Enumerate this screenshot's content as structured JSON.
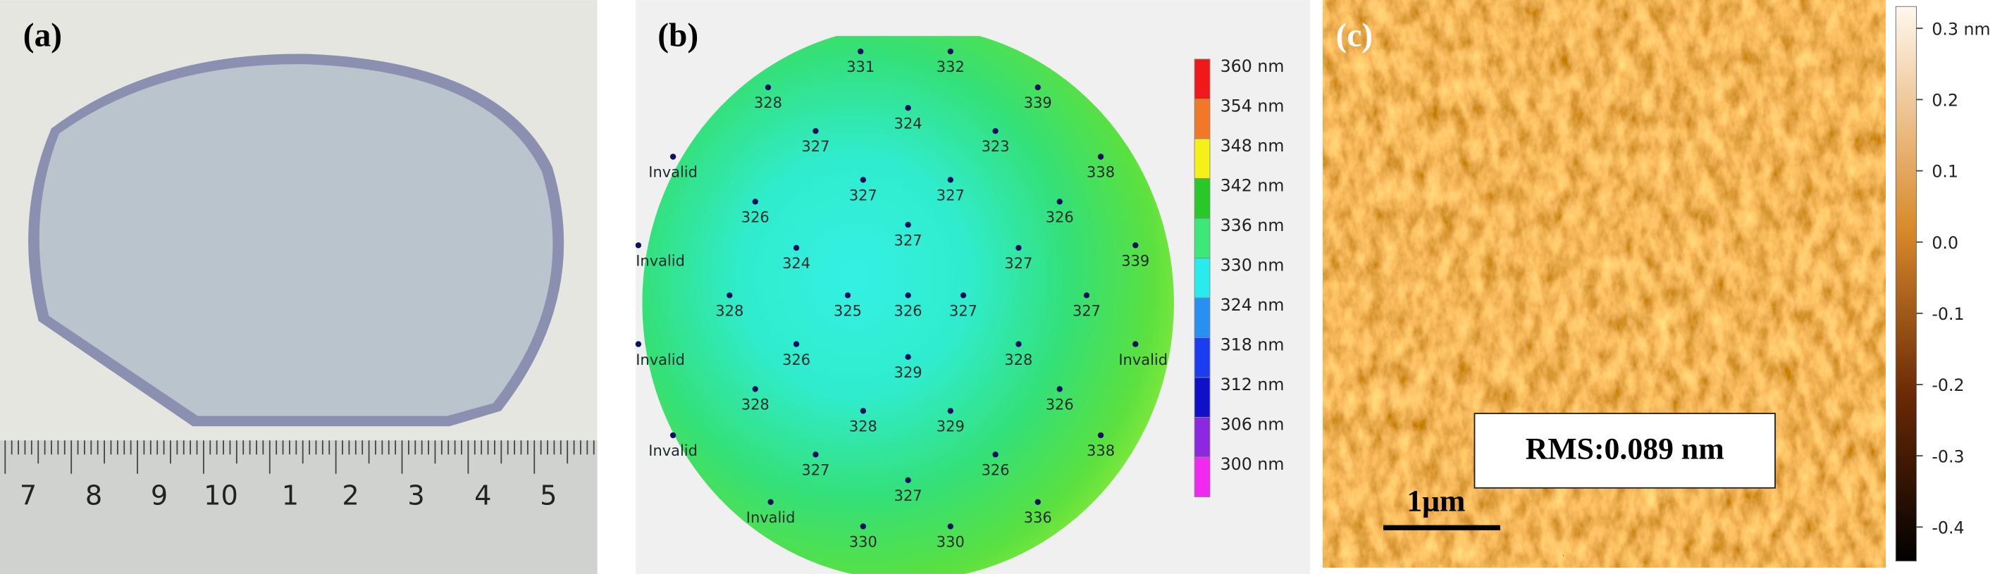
{
  "panels": [
    {
      "label": "(a)",
      "ruler_labels": [
        "7",
        "8",
        "9",
        "10",
        "1",
        "2",
        "3",
        "4",
        "5"
      ]
    },
    {
      "label": "(b)",
      "points": [
        331,
        332,
        328,
        339,
        324,
        327,
        323,
        "Invalid",
        338,
        327,
        327,
        326,
        326,
        327,
        "Invalid",
        324,
        327,
        339,
        328,
        325,
        326,
        327,
        327,
        "Invalid",
        326,
        329,
        328,
        "Invalid",
        328,
        326,
        328,
        329,
        "Invalid",
        338,
        327,
        326,
        327,
        "Invalid",
        336,
        330,
        330
      ],
      "colorbar": [
        {
          "value": 360,
          "label": "360 nm",
          "color": "#f01818"
        },
        {
          "value": 354,
          "label": "354 nm",
          "color": "#f07828"
        },
        {
          "value": 348,
          "label": "348 nm",
          "color": "#f4f018"
        },
        {
          "value": 342,
          "label": "342 nm",
          "color": "#28c828"
        },
        {
          "value": 336,
          "label": "336 nm",
          "color": "#3ce878"
        },
        {
          "value": 330,
          "label": "330 nm",
          "color": "#28ecec"
        },
        {
          "value": 324,
          "label": "324 nm",
          "color": "#2890f0"
        },
        {
          "value": 318,
          "label": "318 nm",
          "color": "#1c3cf0"
        },
        {
          "value": 312,
          "label": "312 nm",
          "color": "#1010c8"
        },
        {
          "value": 306,
          "label": "306 nm",
          "color": "#8c28e0"
        },
        {
          "value": 300,
          "label": "300 nm",
          "color": "#f028f0"
        }
      ]
    },
    {
      "label": "(c)",
      "scale_bar": "1μm",
      "annotation": "RMS:0.089 nm",
      "colorbar": [
        "0.3 nm",
        "0.2",
        "0.1",
        "0.0",
        "-0.1",
        "-0.2",
        "-0.3",
        "-0.4"
      ]
    }
  ]
}
